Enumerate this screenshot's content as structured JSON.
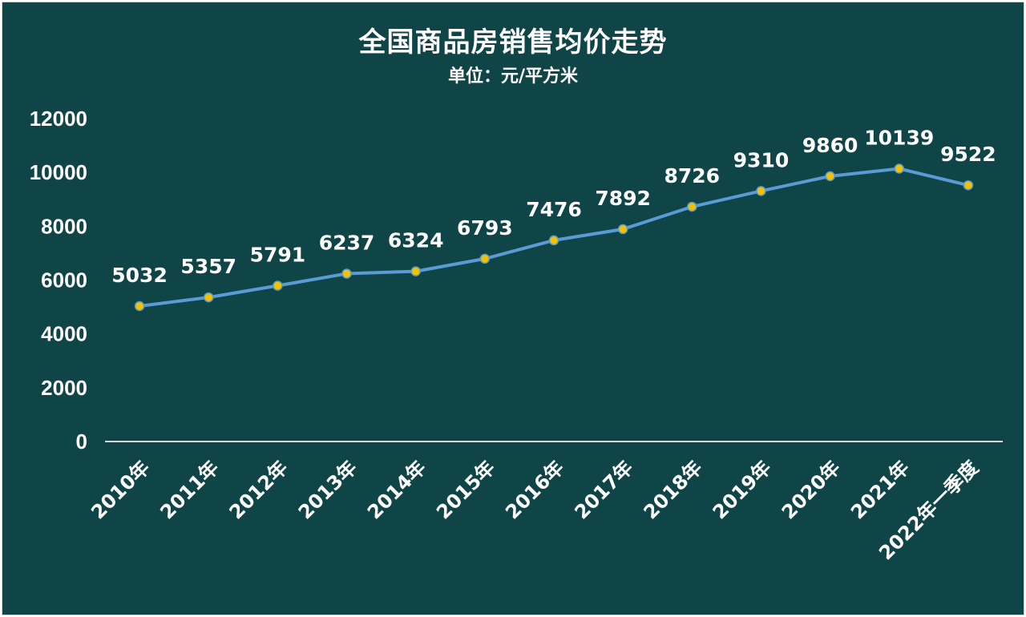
{
  "chart_data": {
    "type": "line",
    "title": "全国商品房销售均价走势",
    "subtitle": "单位：元/平方米",
    "categories": [
      "2010年",
      "2011年",
      "2012年",
      "2013年",
      "2014年",
      "2015年",
      "2016年",
      "2017年",
      "2018年",
      "2019年",
      "2020年",
      "2021年",
      "2022年一季度"
    ],
    "series": [
      {
        "values": [
          5032,
          5357,
          5791,
          6237,
          6324,
          6793,
          7476,
          7892,
          8726,
          9310,
          9860,
          10139,
          9522
        ],
        "labels": [
          "5032",
          "5357",
          "5791",
          "6237",
          "6324",
          "6793",
          "7476",
          "7892",
          "8726",
          "9310",
          "9860",
          "10139",
          "9522"
        ]
      }
    ],
    "ylim": [
      0,
      12000
    ],
    "yticks": [
      "0",
      "2000",
      "4000",
      "6000",
      "8000",
      "10000",
      "12000"
    ],
    "grid": false,
    "legend": "none",
    "colors": {
      "background": "#0f4547",
      "line": "#5b9bd5",
      "marker": "#f2c200",
      "text": "#ffffff",
      "axis": "#d9d9d9"
    }
  }
}
